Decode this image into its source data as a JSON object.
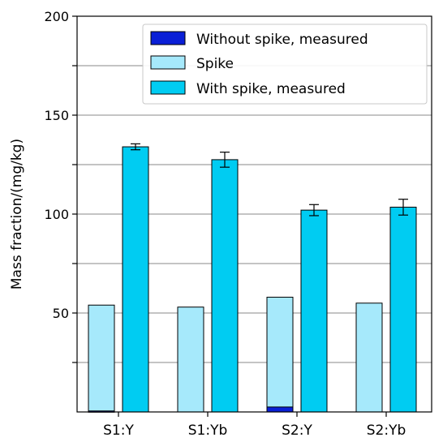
{
  "chart_data": {
    "type": "bar",
    "title": "",
    "xlabel": "",
    "ylabel": "Mass fraction/(mg/kg)",
    "ylim": [
      0,
      200
    ],
    "yticks": [
      50,
      100,
      150,
      200
    ],
    "grid": true,
    "legend_position": "top-right",
    "categories": [
      "S1:Y",
      "S1:Yb",
      "S2:Y",
      "S2:Yb"
    ],
    "series": [
      {
        "name": "Without spike, measured",
        "color": "#0a1fd6",
        "stacked_under": "Spike",
        "values": [
          0.5,
          0.0,
          2.5,
          0.0
        ],
        "errors": [
          0,
          0,
          0,
          0
        ]
      },
      {
        "name": "Spike",
        "color": "#a6e9fb",
        "values": [
          54,
          53,
          58,
          55
        ],
        "errors": [
          0,
          0,
          0,
          0
        ]
      },
      {
        "name": "With spike, measured",
        "color": "#00ccf2",
        "values": [
          134,
          127.5,
          102,
          103.5
        ],
        "errors": [
          1.5,
          3.8,
          2.8,
          4.0
        ]
      }
    ]
  }
}
